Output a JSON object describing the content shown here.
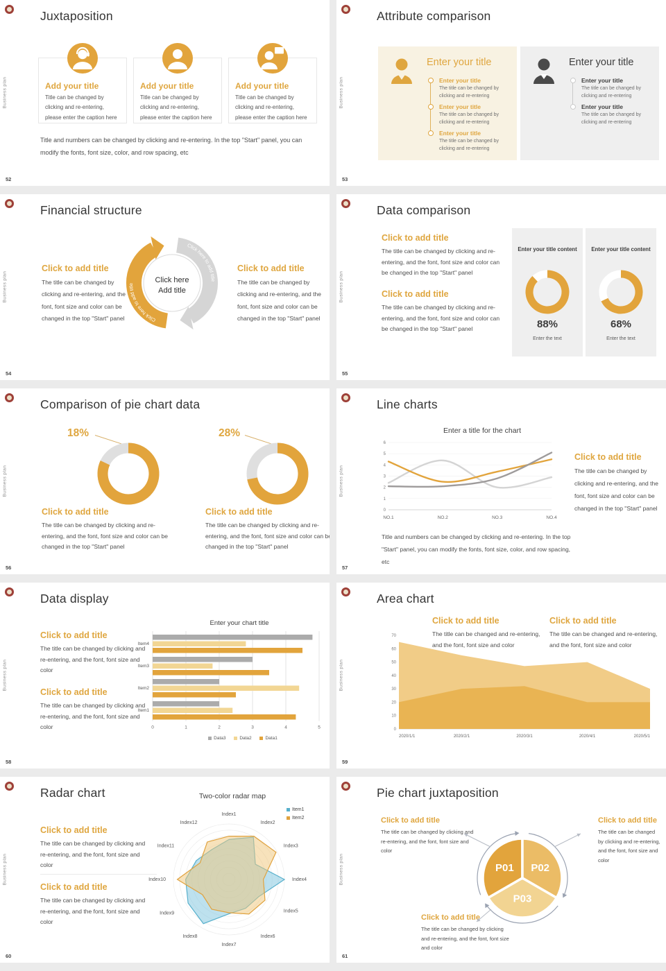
{
  "brand": {
    "vertical_text": "Business plan"
  },
  "colors": {
    "accent": "#E2A43C",
    "accent_light": "#F2D694",
    "gray": "#ABABAB",
    "cream_panel": "#F8F2E2",
    "gray_panel": "#EFEFEF"
  },
  "slides": [
    {
      "number": "52",
      "title": "Juxtaposition",
      "cards": [
        {
          "icon": "customer-service-person-icon",
          "title": "Add your title",
          "body": "Title can be changed by clicking and re-entering, please enter the caption here"
        },
        {
          "icon": "person-icon",
          "title": "Add your title",
          "body": "Title can be changed by clicking and re-entering, please enter the caption here"
        },
        {
          "icon": "presenter-person-icon",
          "title": "Add your title",
          "body": "Title can be changed by clicking and re-entering, please enter the caption here"
        }
      ],
      "footer": "Title and numbers can be changed by clicking and re-entering. In the top \"Start\" panel, you can modify the fonts, font size, color, and row spacing, etc"
    },
    {
      "number": "53",
      "title": "Attribute comparison",
      "left_panel": {
        "title": "Enter your title",
        "items": [
          {
            "title": "Enter your title",
            "desc": "The title can be changed by clicking and re-entering"
          },
          {
            "title": "Enter your title",
            "desc": "The title can be changed by clicking and re-entering"
          },
          {
            "title": "Enter your title",
            "desc": "The title can be changed by clicking and re-entering"
          }
        ]
      },
      "right_panel": {
        "title": "Enter your title",
        "items": [
          {
            "title": "Enter your title",
            "desc": "The title can be changed by clicking and re-entering"
          },
          {
            "title": "Enter your title",
            "desc": "The title can be changed by clicking and re-entering"
          }
        ]
      }
    },
    {
      "number": "54",
      "title": "Financial structure",
      "left": {
        "title": "Click to add title",
        "body": "The title can be changed by clicking and re-entering, and the font, font size and color can be changed in the top \"Start\" panel"
      },
      "right": {
        "title": "Click to add title",
        "body": "The title can be changed by clicking and re-entering, and the font, font size and color can be changed in the top \"Start\" panel"
      },
      "center": {
        "line1": "Click here",
        "line2": "Add title"
      },
      "cycle": {
        "arc_text": "Click here to add title",
        "left_color": "#E2A43C",
        "right_color": "#D5D5D5"
      }
    },
    {
      "number": "55",
      "title": "Data comparison",
      "blocks": [
        {
          "title": "Click to add title",
          "body": "The title can be changed by clicking and re-entering, and the font, font size and color can be changed in the top \"Start\" panel"
        },
        {
          "title": "Click to add title",
          "body": "The title can be changed by clicking and re-entering, and the font, font size and color can be changed in the top \"Start\" panel"
        }
      ],
      "cards": [
        {
          "header": "Enter your title content",
          "percent_label": "88%",
          "caption": "Enter the text",
          "donut": {
            "percent": 88,
            "r": 26,
            "th": 11,
            "color": "#E2A43C",
            "track": "#FFFFFF"
          }
        },
        {
          "header": "Enter your title content",
          "percent_label": "68%",
          "caption": "Enter the text",
          "donut": {
            "percent": 68,
            "r": 26,
            "th": 11,
            "color": "#E2A43C",
            "track": "#FFFFFF"
          }
        }
      ]
    },
    {
      "number": "56",
      "title": "Comparison of pie chart data",
      "donuts": [
        {
          "label": "18%",
          "donut": {
            "percent": 82,
            "r": 37,
            "th": 15,
            "color": "#E2A43C",
            "track": "#DFDFDF"
          }
        },
        {
          "label": "28%",
          "donut": {
            "percent": 72,
            "r": 37,
            "th": 15,
            "color": "#E2A43C",
            "track": "#DFDFDF"
          }
        }
      ],
      "blocks": [
        {
          "title": "Click to add title",
          "body": "The title can be changed by clicking and re-entering, and the font, font size and color can be changed in the top \"Start\" panel"
        },
        {
          "title": "Click to add title",
          "body": "The title can be changed by clicking and re-entering, and the font, font size and color can be changed in the top \"Start\" panel"
        }
      ]
    },
    {
      "number": "57",
      "title": "Line charts",
      "chart": {
        "type": "line",
        "title": "Enter a title for the chart",
        "x_labels": [
          "NO.1",
          "NO.2",
          "NO.3",
          "NO.4"
        ],
        "ymax": 6,
        "series": [
          {
            "name": "light-gray-series",
            "color": "#D4D4D4",
            "values": [
              2.4,
              4.4,
              2.0,
              2.9
            ]
          },
          {
            "name": "amber-series",
            "color": "#E2A43C",
            "values": [
              4.3,
              2.5,
              3.4,
              4.5
            ]
          },
          {
            "name": "dark-gray-series",
            "color": "#9E9B9B",
            "values": [
              2.1,
              2.1,
              2.8,
              5.1
            ]
          }
        ]
      },
      "block": {
        "title": "Click to add title",
        "body": "The title can be changed by clicking and re-entering, and the font, font size and color can be changed in the top \"Start\" panel"
      },
      "footer": "Title and numbers can be changed by clicking and re-entering. In the top \"Start\" panel, you can modify the fonts, font size, color, and row spacing, etc"
    },
    {
      "number": "58",
      "title": "Data display",
      "blocks": [
        {
          "title": "Click to add title",
          "body": "The title can be changed by clicking and re-entering, and the font, font size and color"
        },
        {
          "title": "Click to add title",
          "body": "The title can be changed by clicking and re-entering, and the font, font size and color"
        }
      ],
      "chart": {
        "type": "bar",
        "title": "Enter your chart title",
        "categories": [
          "Item4",
          "Item3",
          "Item2",
          "Item1"
        ],
        "xmax": 5,
        "series": [
          {
            "name": "Data3",
            "color": "#ABABAB",
            "values": [
              4.8,
              3.0,
              2.0,
              2.0
            ]
          },
          {
            "name": "Data2",
            "color": "#F2D694",
            "values": [
              2.8,
              1.8,
              4.4,
              2.4
            ]
          },
          {
            "name": "Data1",
            "color": "#E2A43C",
            "values": [
              4.5,
              3.5,
              2.5,
              4.3
            ]
          }
        ]
      }
    },
    {
      "number": "59",
      "title": "Area chart",
      "blocks": [
        {
          "title": "Click to add title",
          "body": "The title can be changed and re-entering, and the font, font size and color"
        },
        {
          "title": "Click to add title",
          "body": "The title can be changed and re-entering, and the font, font size and color"
        }
      ],
      "chart": {
        "type": "area",
        "x_labels": [
          "2020/1/1",
          "2020/2/1",
          "2020/3/1",
          "2020/4/1",
          "2020/5/1"
        ],
        "ymax": 70,
        "ystep": 10,
        "series": [
          {
            "name": "upper-area",
            "color": "#F1CC87",
            "values": [
              65,
              55,
              47,
              50,
              30
            ]
          },
          {
            "name": "lower-area",
            "color": "#E9B453",
            "values": [
              20,
              30,
              32,
              20,
              20
            ]
          }
        ]
      }
    },
    {
      "number": "60",
      "title": "Radar chart",
      "blocks": [
        {
          "title": "Click to add title",
          "body": "The title can be changed by clicking and re-entering, and the font, font size and color"
        },
        {
          "title": "Click to add title",
          "body": "The title can be changed by clicking and re-entering, and the font, font size and color"
        }
      ],
      "chart": {
        "type": "radar",
        "title": "Two-color radar map",
        "axes": [
          "Index1",
          "Index2",
          "Index3",
          "Index4",
          "Index5",
          "Index6",
          "Index7",
          "Index8",
          "Index9",
          "Index10",
          "Index11",
          "Index12"
        ],
        "series": [
          {
            "name": "Item1",
            "color": "#58B0CC",
            "fill": "rgba(124,196,222,0.5)",
            "values": [
              0.72,
              0.88,
              0.55,
              1.0,
              0.62,
              0.6,
              0.62,
              0.92,
              0.85,
              0.78,
              0.68,
              0.62
            ]
          },
          {
            "name": "Item2",
            "color": "#E0A23E",
            "fill": "rgba(240,198,120,0.5)",
            "values": [
              0.78,
              0.9,
              0.98,
              0.62,
              0.75,
              0.72,
              0.6,
              0.62,
              0.55,
              0.93,
              0.6,
              0.78
            ]
          }
        ]
      }
    },
    {
      "number": "61",
      "title": "Pie chart juxtaposition",
      "blocks": [
        {
          "title": "Click to add title",
          "body": "The title can be changed by clicking and re-entering, and the font, font size and color"
        },
        {
          "title": "Click to add title",
          "body": "The title can be changed by clicking and re-entering, and the font, font size and color"
        },
        {
          "title": "Click to add title",
          "body": "The title can be changed by clicking and re-entering, and the font, font size and color"
        }
      ],
      "pie": {
        "labels": [
          "P01",
          "P02",
          "P03"
        ],
        "colors": [
          "#E2A43C",
          "#EBBC66",
          "#F2D492"
        ],
        "ring_color": "#9AA2B1"
      }
    }
  ]
}
